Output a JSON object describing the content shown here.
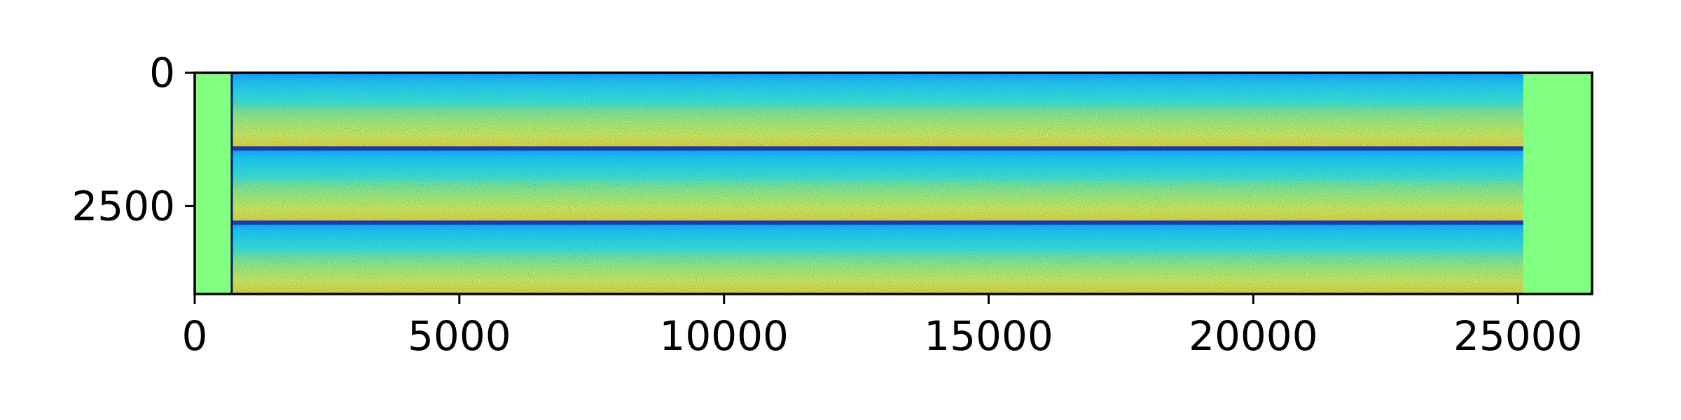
{
  "chart_data": {
    "type": "heatmap",
    "title": "",
    "xlabel": "",
    "ylabel": "",
    "colormap": "jet",
    "image_size": {
      "columns": 26400,
      "rows": 4150
    },
    "xlim": [
      0,
      26400
    ],
    "ylim": [
      4150,
      0
    ],
    "y_inverted": true,
    "x_ticks": [
      {
        "value": 0,
        "label": "0"
      },
      {
        "value": 5000,
        "label": "5000"
      },
      {
        "value": 10000,
        "label": "10000"
      },
      {
        "value": 15000,
        "label": "15000"
      },
      {
        "value": 20000,
        "label": "20000"
      },
      {
        "value": 25000,
        "label": "25000"
      }
    ],
    "y_ticks": [
      {
        "value": 0,
        "label": "0"
      },
      {
        "value": 2500,
        "label": "2500"
      }
    ],
    "data_columns_range": [
      700,
      25100
    ],
    "padding_fill_color": "#80ff80",
    "band_boundaries_rows": [
      0,
      1420,
      2810,
      4150
    ],
    "dark_separator_lines_rows": [
      1420,
      2810
    ],
    "dark_separator_column": 700,
    "intensity_trend": "within each band, values increase from top (blue) to bottom (yellow/red)",
    "grid": false
  }
}
